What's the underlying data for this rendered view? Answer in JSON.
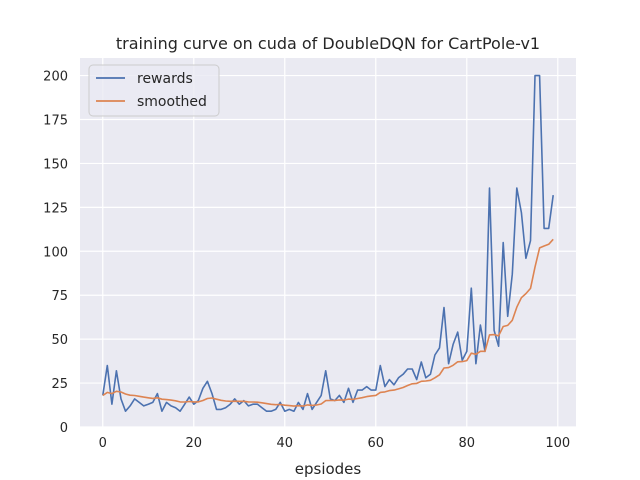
{
  "chart_data": {
    "type": "line",
    "title": "training curve on cuda of DoubleDQN for CartPole-v1",
    "xlabel": "epsiodes",
    "ylabel": "",
    "xlim": [
      -5,
      104
    ],
    "ylim": [
      0,
      210
    ],
    "xticks": [
      0,
      20,
      40,
      60,
      80,
      100
    ],
    "yticks": [
      0,
      25,
      50,
      75,
      100,
      125,
      150,
      175,
      200
    ],
    "grid": true,
    "legend_position": "upper-left",
    "series": [
      {
        "name": "rewards",
        "color": "#4c72b0",
        "values": [
          18,
          35,
          13,
          32,
          16,
          9,
          12,
          16,
          14,
          12,
          13,
          14,
          19,
          9,
          14,
          12,
          11,
          9,
          13,
          17,
          13,
          15,
          22,
          26,
          19,
          10,
          10,
          11,
          13,
          16,
          13,
          15,
          12,
          13,
          13,
          11,
          9,
          9,
          10,
          14,
          9,
          10,
          9,
          14,
          10,
          19,
          10,
          14,
          18,
          32,
          16,
          15,
          18,
          14,
          22,
          14,
          21,
          21,
          23,
          21,
          21,
          35,
          23,
          27,
          24,
          28,
          30,
          33,
          33,
          27,
          37,
          28,
          30,
          41,
          45,
          68,
          36,
          47,
          54,
          38,
          43,
          79,
          36,
          58,
          43,
          136,
          55,
          46,
          105,
          63,
          87,
          136,
          122,
          96,
          106,
          200,
          200,
          113,
          113,
          132
        ]
      },
      {
        "name": "smoothed",
        "color": "#dd8452",
        "values": [
          18,
          19.7,
          19,
          20.3,
          19.9,
          18.8,
          18.1,
          17.9,
          17.5,
          17,
          16.6,
          16.3,
          16.6,
          15.8,
          15.6,
          15.3,
          14.9,
          14.3,
          14.2,
          14.5,
          14.3,
          14.3,
          15.1,
          16.2,
          16.5,
          15.8,
          15.2,
          14.8,
          14.6,
          14.7,
          14.6,
          14.6,
          14.3,
          14.2,
          14.1,
          13.8,
          13.3,
          12.9,
          12.7,
          12.8,
          12.4,
          12.2,
          11.9,
          12.1,
          11.9,
          12.6,
          12.3,
          12.5,
          13.1,
          15,
          15.1,
          15.1,
          15.4,
          15.3,
          15.9,
          15.7,
          16.2,
          16.7,
          17.3,
          17.7,
          18,
          19.7,
          20,
          20.7,
          21,
          21.7,
          22.5,
          23.6,
          24.6,
          24.8,
          26,
          26.2,
          26.6,
          28,
          29.7,
          33.6,
          33.8,
          35.1,
          37.1,
          37.2,
          37.8,
          42,
          41.4,
          43.1,
          43.1,
          52.4,
          52.6,
          51.9,
          57.2,
          57.8,
          60.7,
          68.2,
          73.6,
          75.9,
          78.9,
          91,
          101.9,
          103,
          104,
          106.8
        ]
      }
    ]
  }
}
